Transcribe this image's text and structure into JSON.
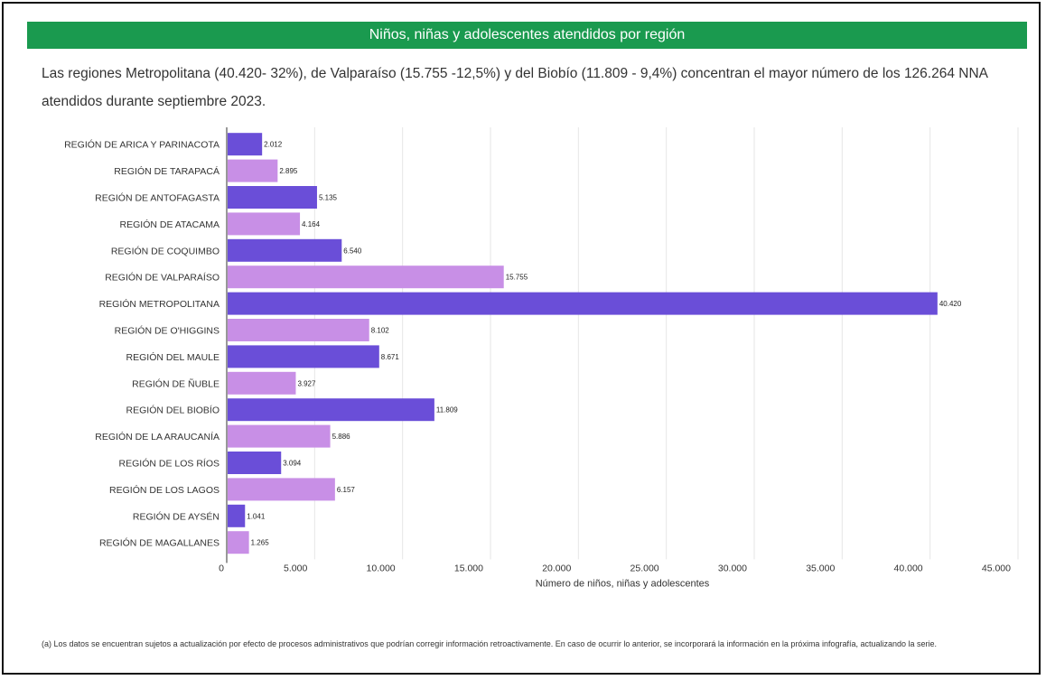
{
  "title": "Niños, niñas y adolescentes atendidos por región",
  "subtitle": "Las regiones Metropolitana (40.420- 32%), de Valparaíso (15.755 -12,5%) y del Biobío (11.809 - 9,4%) concentran el mayor número de los 126.264 NNA atendidos durante septiembre 2023.",
  "footnote": "(a) Los datos se encuentran sujetos a actualización por efecto de procesos administrativos que podrían corregir información retroactivamente. En caso de ocurrir lo anterior, se incorporará la información en la próxima infografía, actualizando la serie.",
  "colors": {
    "header": "#1a9a4f",
    "bar_dark": "#6a4ed8",
    "bar_light": "#c88fe6",
    "grid": "#e6e6e6"
  },
  "chart_data": {
    "type": "bar",
    "orientation": "horizontal",
    "categories": [
      "REGIÓN DE ARICA Y PARINACOTA",
      "REGIÓN DE TARAPACÁ",
      "REGIÓN DE ANTOFAGASTA",
      "REGIÓN DE ATACAMA",
      "REGIÓN DE COQUIMBO",
      "REGIÓN DE VALPARAÍSO",
      "REGIÓN METROPOLITANA",
      "REGIÓN DE O'HIGGINS",
      "REGIÓN DEL MAULE",
      "REGIÓN DE ÑUBLE",
      "REGIÓN DEL BIOBÍO",
      "REGIÓN DE LA ARAUCANÍA",
      "REGIÓN DE LOS RÍOS",
      "REGIÓN DE LOS LAGOS",
      "REGIÓN DE AYSÉN",
      "REGIÓN DE MAGALLANES"
    ],
    "values": [
      2012,
      2895,
      5135,
      4164,
      6540,
      15755,
      40420,
      8102,
      8671,
      3927,
      11809,
      5886,
      3094,
      6157,
      1041,
      1265
    ],
    "value_labels": [
      "2.012",
      "2.895",
      "5.135",
      "4.164",
      "6.540",
      "15.755",
      "40.420",
      "8.102",
      "8.671",
      "3.927",
      "11.809",
      "5.886",
      "3.094",
      "6.157",
      "1.041",
      "1.265"
    ],
    "xlim": [
      0,
      45000
    ],
    "xticks": [
      0,
      5000,
      10000,
      15000,
      20000,
      25000,
      30000,
      35000,
      40000,
      45000
    ],
    "xtick_labels": [
      "0",
      "5.000",
      "10.000",
      "15.000",
      "20.000",
      "25.000",
      "30.000",
      "35.000",
      "40.000",
      "45.000"
    ],
    "xlabel": "Número de niños, niñas y adolescentes",
    "ylabel": "",
    "grid": "vertical",
    "bar_color_pattern": "alternating dark/light purple"
  }
}
